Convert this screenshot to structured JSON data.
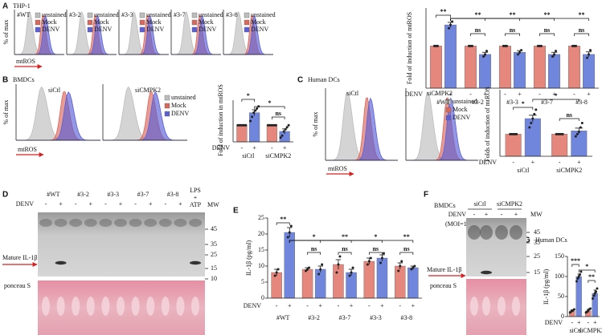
{
  "flow": [
    {
      "letter": "A",
      "title": "THP-1",
      "ylabel": "% of max",
      "xlabel": "mtROS",
      "legend": [
        {
          "name": "unstained",
          "color": "#bdbdbd"
        },
        {
          "name": "Mock",
          "color": "#d9675c"
        },
        {
          "name": "DENV",
          "color": "#5b5fd6"
        }
      ],
      "plots": [
        "#WT",
        "#3-2",
        "#3-3",
        "#3-7",
        "#3-8"
      ]
    },
    {
      "letter": "B",
      "title": "BMDCs",
      "ylabel": "% of max",
      "xlabel": "mtROS",
      "legend": [
        {
          "name": "unstained",
          "color": "#bdbdbd"
        },
        {
          "name": "Mock",
          "color": "#d9675c"
        },
        {
          "name": "DENV",
          "color": "#5b5fd6"
        }
      ],
      "plots": [
        "siCtl",
        "siCMPK2"
      ]
    },
    {
      "letter": "C",
      "title": "Human DCs",
      "ylabel": "% of max",
      "xlabel": "mtROS",
      "legend": [
        {
          "name": "unstained",
          "color": "#bdbdbd"
        },
        {
          "name": "Mock",
          "color": "#d9675c"
        },
        {
          "name": "DENV",
          "color": "#5b5fd6"
        }
      ],
      "plots": [
        "siCtl",
        "siCMPK2"
      ]
    }
  ],
  "chart_data": [
    {
      "type": "bar",
      "ylabel": "Fold of induction of mtROS",
      "row_label": "DENV",
      "groups": [
        "#WT",
        "#3-2",
        "#3-3",
        "#3-7",
        "#3-8"
      ],
      "categories": [
        "-",
        "+",
        "-",
        "+",
        "-",
        "+",
        "-",
        "+",
        "-",
        "+"
      ],
      "values": [
        1,
        1.5,
        1,
        0.8,
        1,
        0.85,
        1,
        0.8,
        1,
        0.8
      ],
      "errors": [
        0,
        0.06,
        0,
        0.05,
        0,
        0.04,
        0,
        0.05,
        0,
        0.06
      ],
      "points": [
        [
          1,
          1,
          1
        ],
        [
          1.42,
          1.5,
          1.58
        ],
        [
          1,
          1,
          1
        ],
        [
          0.75,
          0.8,
          0.88
        ],
        [
          1,
          1,
          1
        ],
        [
          0.8,
          0.85,
          0.9
        ],
        [
          1,
          1,
          1
        ],
        [
          0.75,
          0.8,
          0.88
        ],
        [
          1,
          1,
          1
        ],
        [
          0.72,
          0.8,
          0.9
        ]
      ],
      "colors": [
        "#e5877d",
        "#6f86dc"
      ],
      "ylim": [
        0,
        1.9
      ],
      "annotations": [
        "**",
        "**",
        "**",
        "**",
        "**",
        "ns",
        "ns",
        "ns",
        "ns"
      ]
    },
    {
      "type": "bar",
      "ylabel": "Fold of induction in mtROS",
      "row_label": "DENV",
      "groups": [
        "siCtl",
        "siCMPK2"
      ],
      "categories": [
        "-",
        "+",
        "-",
        "+"
      ],
      "values": [
        1,
        1.3,
        1,
        0.85
      ],
      "errors": [
        0,
        0.07,
        0,
        0.06
      ],
      "points": [
        [
          1,
          1,
          1,
          1,
          1,
          1
        ],
        [
          1.1,
          1.2,
          1.3,
          1.35,
          1.4,
          1.45
        ],
        [
          1,
          1,
          1,
          1,
          1,
          1
        ],
        [
          0.7,
          0.75,
          0.85,
          0.9,
          0.95,
          1.0
        ]
      ],
      "colors": [
        "#e5877d",
        "#6f86dc"
      ],
      "ylim": [
        0.6,
        1.6
      ],
      "annotations": [
        "*",
        "*",
        "ns"
      ]
    },
    {
      "type": "bar",
      "ylabel": "Folds of induction of mtROS",
      "row_label": "DENV",
      "groups": [
        "siCtl",
        "siCMPK2"
      ],
      "categories": [
        "-",
        "+",
        "-",
        "+"
      ],
      "values": [
        1,
        1.7,
        1,
        1.15
      ],
      "errors": [
        0,
        0.15,
        0,
        0.12
      ],
      "points": [
        [
          1,
          1,
          1,
          1,
          1
        ],
        [
          1.3,
          1.5,
          1.7,
          1.9,
          2.1
        ],
        [
          1,
          1,
          1,
          1,
          1
        ],
        [
          0.9,
          1.0,
          1.1,
          1.3,
          1.5
        ]
      ],
      "colors": [
        "#e5877d",
        "#6f86dc"
      ],
      "ylim": [
        0,
        3
      ],
      "annotations": [
        "*",
        "*",
        "ns"
      ]
    },
    {
      "type": "bar",
      "label": "E",
      "ylabel": "IL-1β (pg/ml)",
      "row_label": "DENV",
      "groups": [
        "#WT",
        "#3-2",
        "#3-7",
        "#3-3",
        "#3-8"
      ],
      "categories": [
        "-",
        "+",
        "-",
        "+",
        "-",
        "+",
        "-",
        "+",
        "-",
        "+"
      ],
      "values": [
        8,
        20.5,
        9,
        9,
        10.5,
        8,
        11.5,
        12.5,
        10,
        9.5
      ],
      "errors": [
        1,
        1.5,
        0.5,
        1,
        1.5,
        1,
        1,
        1,
        1,
        0.5
      ],
      "points": [
        [
          7,
          8,
          9
        ],
        [
          19,
          20.5,
          22.5
        ],
        [
          8.5,
          9,
          9.5
        ],
        [
          7.5,
          9,
          10.5
        ],
        [
          8,
          10.5,
          13
        ],
        [
          7,
          8,
          9.5
        ],
        [
          10.5,
          11.5,
          12.5
        ],
        [
          11,
          12.5,
          14
        ],
        [
          8.5,
          10,
          11.5
        ],
        [
          9,
          9.5,
          10
        ]
      ],
      "colors": [
        "#e5877d",
        "#6f86dc"
      ],
      "ylim": [
        0,
        25
      ],
      "yticks": [
        0,
        5,
        10,
        15,
        20,
        25
      ],
      "annotations": [
        "**",
        "*",
        "**",
        "*",
        "**",
        "ns",
        "ns",
        "ns",
        "ns"
      ]
    },
    {
      "type": "bar",
      "label": "G",
      "title": "Human DCs",
      "ylabel": "IL-1β (pg/ml)",
      "row_label": "DENV",
      "groups": [
        "siCtl",
        "siCMPK2"
      ],
      "categories": [
        "-",
        "+",
        "-",
        "+"
      ],
      "values": [
        14,
        100,
        14,
        58
      ],
      "errors": [
        3,
        6,
        4,
        8
      ],
      "points": [
        [
          10,
          13,
          15,
          18
        ],
        [
          88,
          95,
          100,
          105,
          112
        ],
        [
          10,
          12,
          15,
          18,
          20
        ],
        [
          45,
          52,
          58,
          62,
          70
        ]
      ],
      "colors": [
        "#e5877d",
        "#6f86dc"
      ],
      "ylim": [
        0,
        150
      ],
      "yticks": [
        0,
        50,
        100,
        150
      ],
      "annotations": [
        "***",
        "*",
        "**"
      ]
    }
  ],
  "blots": [
    {
      "letter": "D",
      "lanes": [
        "#WT",
        "#3-2",
        "#3-3",
        "#3-7",
        "#3-8"
      ],
      "treatment": [
        "LPS",
        "+",
        "ATP"
      ],
      "row_label": "DENV",
      "signs": [
        "-",
        "+",
        "-",
        "+",
        "-",
        "+",
        "-",
        "+",
        "-",
        "+"
      ],
      "mw_title": "MW",
      "mw": [
        45,
        35,
        25,
        15,
        10
      ],
      "band_label": "Mature IL-1β",
      "stain": "ponceau S"
    },
    {
      "letter": "F",
      "title": "BMDCs",
      "groups": [
        "siCtl",
        "siCMPK2"
      ],
      "row_label": "DENV",
      "condition": "(MOI=1)",
      "signs": [
        "-",
        "+",
        "-",
        "+"
      ],
      "mw_title": "MW",
      "mw": [
        45,
        35,
        25,
        15
      ],
      "band_label": "Mature IL-1β",
      "stain": "ponceau S"
    }
  ]
}
